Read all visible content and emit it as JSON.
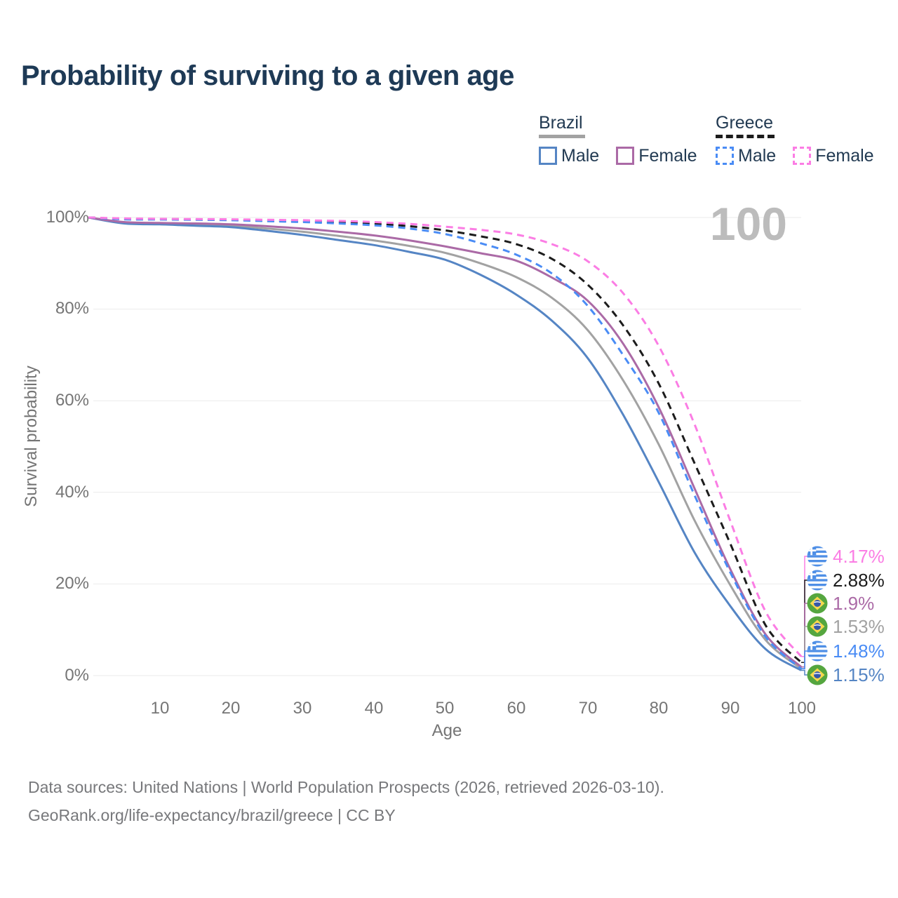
{
  "title": "Probability of surviving to a given age",
  "watermark_age": "100",
  "legend": {
    "groups": [
      {
        "label": "Brazil",
        "line_dashed": false,
        "line_color": "#a2a2a2",
        "items": [
          {
            "label": "Male",
            "color": "#5585c4",
            "dashed": false
          },
          {
            "label": "Female",
            "color": "#ab6aa6",
            "dashed": false
          }
        ]
      },
      {
        "label": "Greece",
        "line_dashed": true,
        "line_color": "#1c1c1c",
        "items": [
          {
            "label": "Male",
            "color": "#4a8cf5",
            "dashed": true
          },
          {
            "label": "Female",
            "color": "#fb7de4",
            "dashed": true
          }
        ]
      }
    ]
  },
  "axes": {
    "y": {
      "label": "Survival probability",
      "ticks": [
        "100%",
        "80%",
        "60%",
        "40%",
        "20%",
        "0%"
      ]
    },
    "x": {
      "label": "Age",
      "ticks": [
        "10",
        "20",
        "30",
        "40",
        "50",
        "60",
        "70",
        "80",
        "90",
        "100"
      ]
    }
  },
  "chart_data": {
    "type": "line",
    "title": "Probability of surviving to a given age",
    "xlabel": "Age",
    "ylabel": "Survival probability",
    "xlim": [
      0,
      100
    ],
    "ylim": [
      0,
      100
    ],
    "grid": "horizontal only, at 0/20/40/60/80/100 percent",
    "legend_position": "top-right",
    "age_indicator": "100",
    "x": [
      0,
      5,
      10,
      15,
      20,
      25,
      30,
      35,
      40,
      45,
      50,
      55,
      60,
      65,
      70,
      75,
      80,
      85,
      90,
      95,
      100
    ],
    "series": [
      {
        "id": "greece_female",
        "country": "Greece",
        "sex": "Female",
        "color": "#fb7de4",
        "dashed": true,
        "flag": "greece",
        "end_label": "4.17%",
        "values": [
          100,
          99.8,
          99.7,
          99.65,
          99.6,
          99.5,
          99.4,
          99.25,
          99.0,
          98.6,
          98.0,
          97.3,
          96.3,
          94.2,
          90.5,
          83.5,
          72.0,
          55.0,
          34.0,
          14.0,
          4.17
        ]
      },
      {
        "id": "greece_total",
        "country": "Greece",
        "sex": "Both sexes",
        "color": "#1c1c1c",
        "dashed": true,
        "flag": "greece",
        "end_label": "2.88%",
        "values": [
          100,
          99.7,
          99.65,
          99.6,
          99.5,
          99.35,
          99.2,
          99.0,
          98.7,
          98.1,
          97.2,
          95.9,
          94.2,
          91.0,
          85.4,
          76.5,
          63.8,
          46.5,
          29.0,
          11.0,
          2.88
        ]
      },
      {
        "id": "brazil_female",
        "country": "Brazil",
        "sex": "Female",
        "color": "#ab6aa6",
        "dashed": false,
        "flag": "brazil",
        "end_label": "1.9%",
        "values": [
          100,
          99.0,
          98.8,
          98.7,
          98.5,
          98.1,
          97.6,
          96.9,
          96.1,
          95.0,
          93.7,
          92.2,
          90.6,
          86.9,
          81.9,
          72.5,
          58.6,
          41.0,
          23.4,
          9.0,
          1.9
        ]
      },
      {
        "id": "brazil_total",
        "country": "Brazil",
        "sex": "Both sexes",
        "color": "#a2a2a2",
        "dashed": false,
        "flag": "brazil",
        "end_label": "1.53%",
        "values": [
          100,
          98.85,
          98.65,
          98.45,
          98.2,
          97.6,
          96.9,
          96.0,
          95.0,
          93.8,
          92.3,
          90.0,
          87.0,
          82.5,
          75.5,
          64.5,
          50.5,
          34.0,
          19.9,
          7.8,
          1.53
        ]
      },
      {
        "id": "greece_male",
        "country": "Greece",
        "sex": "Male",
        "color": "#4a8cf5",
        "dashed": true,
        "flag": "greece",
        "end_label": "1.48%",
        "values": [
          100,
          99.6,
          99.55,
          99.5,
          99.4,
          99.2,
          99.0,
          98.7,
          98.3,
          97.6,
          96.4,
          94.4,
          91.9,
          87.8,
          80.8,
          70.0,
          57.4,
          39.5,
          22.7,
          8.5,
          1.48
        ]
      },
      {
        "id": "brazil_male",
        "country": "Brazil",
        "sex": "Male",
        "color": "#5585c4",
        "dashed": false,
        "flag": "brazil",
        "end_label": "1.15%",
        "values": [
          100,
          98.7,
          98.5,
          98.2,
          97.9,
          97.1,
          96.2,
          95.1,
          94.0,
          92.5,
          90.8,
          87.5,
          83.2,
          77.5,
          69.4,
          57.0,
          42.3,
          27.0,
          15.3,
          5.8,
          1.15
        ]
      }
    ]
  },
  "footer": {
    "line1": "Data sources: United Nations | World Population Prospects (2026, retrieved 2026-03-10).",
    "line2": "GeoRank.org/life-expectancy/brazil/greece | CC BY"
  }
}
